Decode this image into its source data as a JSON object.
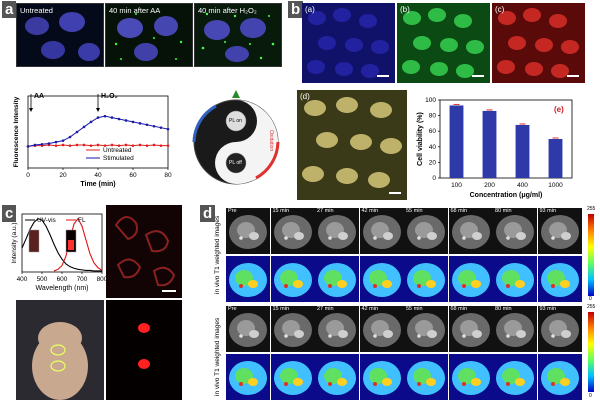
{
  "panel_a": {
    "letter": "a",
    "images": [
      {
        "label": "Untreated"
      },
      {
        "label": "40 min after AA"
      },
      {
        "label": "40 min after H₂O₂"
      }
    ],
    "chart_data": {
      "type": "line",
      "xlabel": "Time (min)",
      "ylabel": "Fluorescence Intensity",
      "xlim": [
        0,
        80
      ],
      "x_ticks": [
        "0",
        "20",
        "40",
        "60",
        "80"
      ],
      "annotations": [
        {
          "text": "AA",
          "x": 0
        },
        {
          "text": "H₂O₂",
          "x": 40
        }
      ],
      "series": [
        {
          "name": "Untreated",
          "color": "#e02020",
          "x": [
            0,
            4,
            8,
            12,
            16,
            20,
            24,
            28,
            32,
            36,
            40,
            44,
            48,
            52,
            56,
            60,
            64,
            68,
            72,
            76,
            80
          ],
          "values": [
            0.3,
            0.31,
            0.31,
            0.32,
            0.31,
            0.32,
            0.31,
            0.32,
            0.32,
            0.31,
            0.32,
            0.31,
            0.32,
            0.31,
            0.32,
            0.31,
            0.32,
            0.31,
            0.32,
            0.31,
            0.31
          ]
        },
        {
          "name": "Stimulated",
          "color": "#1a1aa8",
          "x": [
            0,
            4,
            8,
            12,
            16,
            20,
            24,
            28,
            32,
            36,
            40,
            44,
            48,
            52,
            56,
            60,
            64,
            68,
            72,
            76,
            80
          ],
          "values": [
            0.3,
            0.32,
            0.33,
            0.34,
            0.36,
            0.38,
            0.43,
            0.5,
            0.57,
            0.64,
            0.7,
            0.72,
            0.7,
            0.68,
            0.66,
            0.64,
            0.62,
            0.6,
            0.58,
            0.56,
            0.54
          ]
        }
      ]
    },
    "diagram": {
      "top_label": "PL on",
      "bottom_label": "PL off",
      "left_label": "Reduction",
      "right_label": "Oxidation"
    }
  },
  "panel_b": {
    "letter": "b",
    "subpanels": [
      {
        "label": "(a)",
        "color": "#2a2ab0"
      },
      {
        "label": "(b)",
        "color": "#22b03a"
      },
      {
        "label": "(c)",
        "color": "#c8281e"
      },
      {
        "label": "(d)",
        "color": "#c8c070"
      }
    ],
    "sub_e_label": "(e)",
    "chart_data": {
      "type": "bar",
      "categories": [
        "100",
        "200",
        "400",
        "1000"
      ],
      "values": [
        93,
        86,
        68,
        50
      ],
      "xlabel": "Concentration (μg/ml)",
      "ylabel": "Cell viability (%)",
      "ylim": [
        0,
        100
      ],
      "y_ticks": [
        "0",
        "20",
        "40",
        "60",
        "80",
        "100"
      ],
      "bar_color": "#2d3aa8"
    }
  },
  "panel_c": {
    "letter": "c",
    "chart_data": {
      "type": "line",
      "xlabel": "Wavelength (nm)",
      "ylabel": "Intensity (a.u.)",
      "xlim": [
        400,
        800
      ],
      "x_ticks": [
        "400",
        "500",
        "600",
        "700",
        "800"
      ],
      "series": [
        {
          "name": "UV-vis",
          "color": "#000000",
          "x": [
            400,
            420,
            440,
            460,
            480,
            500,
            520,
            540,
            560,
            580,
            600,
            620,
            640,
            660,
            680,
            700,
            720,
            740,
            760,
            780,
            800
          ],
          "values": [
            0.45,
            0.62,
            0.8,
            0.93,
            1.0,
            0.97,
            0.86,
            0.7,
            0.52,
            0.36,
            0.24,
            0.15,
            0.1,
            0.07,
            0.05,
            0.04,
            0.03,
            0.03,
            0.02,
            0.02,
            0.02
          ]
        },
        {
          "name": "FL",
          "color": "#e01010",
          "x": [
            560,
            580,
            600,
            620,
            640,
            660,
            680,
            700,
            720,
            740,
            760,
            780,
            800
          ],
          "values": [
            0.02,
            0.05,
            0.12,
            0.3,
            0.62,
            0.9,
            1.0,
            0.86,
            0.6,
            0.34,
            0.17,
            0.08,
            0.03
          ]
        }
      ]
    }
  },
  "panel_d": {
    "letter": "d",
    "times": [
      "Pre",
      "15 min",
      "27 min",
      "42 min",
      "55 min",
      "68 min",
      "80 min",
      "93 min"
    ],
    "row_labels": [
      "in vivo T1 weighted images",
      "in vivo T1 weighted images"
    ],
    "colorbar": {
      "max": "255",
      "min": "0"
    }
  }
}
